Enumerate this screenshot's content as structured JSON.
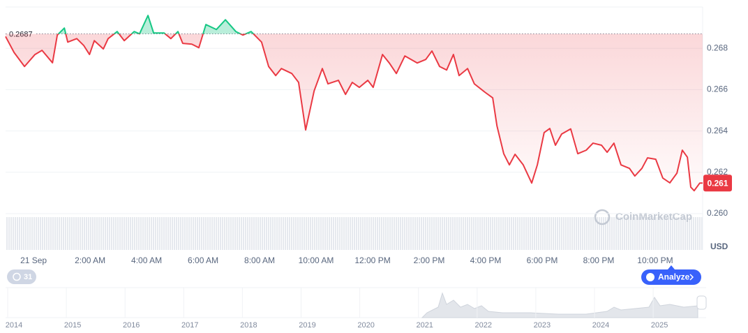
{
  "chart_data": {
    "type": "line",
    "reference": 0.2687,
    "current_price": 0.261,
    "currency": "USD",
    "watermark": "CoinMarketCap",
    "history_badge": 31,
    "analyze_button": "Analyze",
    "above_color": "#16c784",
    "below_color": "#ea3943",
    "grid": true,
    "xlim": [
      -0.99,
      23.68
    ],
    "xticks": [
      {
        "value": 0,
        "label": "21 Sep"
      },
      {
        "value": 2,
        "label": "2:00 AM"
      },
      {
        "value": 4,
        "label": "4:00 AM"
      },
      {
        "value": 6,
        "label": "6:00 AM"
      },
      {
        "value": 8,
        "label": "8:00 AM"
      },
      {
        "value": 10,
        "label": "10:00 AM"
      },
      {
        "value": 12,
        "label": "12:00 PM"
      },
      {
        "value": 14,
        "label": "2:00 PM"
      },
      {
        "value": 16,
        "label": "4:00 PM"
      },
      {
        "value": 18,
        "label": "6:00 PM"
      },
      {
        "value": 20,
        "label": "8:00 PM"
      },
      {
        "value": 22,
        "label": "10:00 PM"
      }
    ],
    "ylim": [
      0.26,
      0.27
    ],
    "yticks": [
      {
        "value": 0.26,
        "label": "0.260"
      },
      0.262,
      0.264,
      0.266,
      0.268
    ],
    "x": [
      -0.99,
      -0.69,
      -0.32,
      0.05,
      0.3,
      0.67,
      0.84,
      1.09,
      1.21,
      1.53,
      1.78,
      1.98,
      2.15,
      2.47,
      2.64,
      2.96,
      3.21,
      3.56,
      3.75,
      4.05,
      4.25,
      4.62,
      4.86,
      5.11,
      5.28,
      5.6,
      5.85,
      6.1,
      6.47,
      6.79,
      7.16,
      7.41,
      7.7,
      8.07,
      8.32,
      8.57,
      8.77,
      9.14,
      9.38,
      9.63,
      9.93,
      10.22,
      10.42,
      10.79,
      11.04,
      11.28,
      11.53,
      11.83,
      12.02,
      12.35,
      12.59,
      12.84,
      13.14,
      13.58,
      13.88,
      14.1,
      14.37,
      14.62,
      14.86,
      15.06,
      15.36,
      15.6,
      15.98,
      16.25,
      16.4,
      16.64,
      16.84,
      17.04,
      17.33,
      17.63,
      17.83,
      18.07,
      18.27,
      18.47,
      18.69,
      19.01,
      19.26,
      19.56,
      19.8,
      20.1,
      20.3,
      20.54,
      20.79,
      21.09,
      21.28,
      21.53,
      21.73,
      22.02,
      22.27,
      22.52,
      22.77,
      22.96,
      23.14,
      23.26,
      23.38,
      23.58,
      23.68
    ],
    "series": [
      {
        "name": "Price",
        "values": [
          0.26857,
          0.2678,
          0.26712,
          0.2677,
          0.2679,
          0.2673,
          0.26864,
          0.26898,
          0.2683,
          0.26847,
          0.26813,
          0.2677,
          0.26837,
          0.26797,
          0.26847,
          0.26881,
          0.26837,
          0.26881,
          0.2687,
          0.26959,
          0.26874,
          0.26874,
          0.26847,
          0.26881,
          0.26824,
          0.2682,
          0.26803,
          0.26915,
          0.26891,
          0.26938,
          0.26881,
          0.26864,
          0.26881,
          0.2683,
          0.26712,
          0.26668,
          0.26702,
          0.26678,
          0.26635,
          0.26405,
          0.26594,
          0.26702,
          0.26628,
          0.26645,
          0.26577,
          0.26635,
          0.26611,
          0.26645,
          0.26611,
          0.2677,
          0.26729,
          0.26678,
          0.26763,
          0.26729,
          0.26746,
          0.26787,
          0.26712,
          0.26695,
          0.2677,
          0.26668,
          0.26702,
          0.26628,
          0.26587,
          0.2656,
          0.26425,
          0.2629,
          0.26236,
          0.26287,
          0.26236,
          0.26148,
          0.26236,
          0.26392,
          0.26412,
          0.26331,
          0.26385,
          0.2641,
          0.2629,
          0.26307,
          0.26341,
          0.26331,
          0.26297,
          0.26341,
          0.26236,
          0.26219,
          0.26182,
          0.26219,
          0.2627,
          0.26263,
          0.26172,
          0.26149,
          0.26196,
          0.26307,
          0.26273,
          0.26128,
          0.26111,
          0.26148,
          0.26148
        ]
      }
    ]
  },
  "navigator": {
    "years": [
      "2014",
      "2015",
      "2016",
      "2017",
      "2018",
      "2019",
      "2020",
      "2021",
      "2022",
      "2023",
      "2024",
      "2025"
    ]
  }
}
